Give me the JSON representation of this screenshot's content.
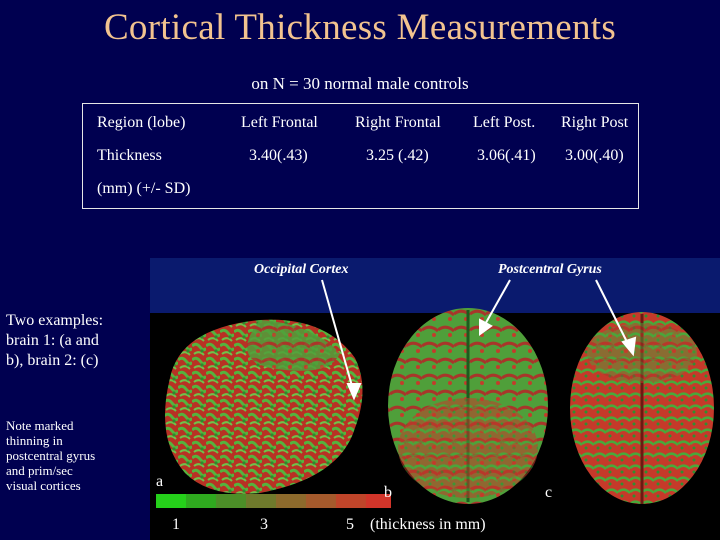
{
  "title": "Cortical Thickness Measurements",
  "subtitle": "on N = 30 normal male controls",
  "table": {
    "headers": [
      "Region (lobe)",
      "Left Frontal",
      "Right Frontal",
      "Left Post.",
      "Right Post"
    ],
    "row_label": "Thickness",
    "row_label_2": "(mm) (+/- SD)",
    "values": [
      "3.40(.43)",
      "3.25 (.42)",
      "3.06(.41)",
      "3.00(.40)"
    ]
  },
  "figure": {
    "label_occipital": "Occipital Cortex",
    "label_postcentral": "Postcentral Gyrus",
    "panel_a": "a",
    "panel_b": "b",
    "panel_c": "c",
    "scale_1": "1",
    "scale_3": "3",
    "scale_5": "5",
    "scale_unit": "(thickness in mm)"
  },
  "side_text": {
    "line1": "Two examples:",
    "line2": "brain 1: (a and",
    "line3": "b), brain 2: (c)"
  },
  "note": {
    "line1": "Note marked",
    "line2": "thinning in",
    "line3": "postcentral gyrus",
    "line4": "and prim/sec",
    "line5": "visual cortices"
  },
  "colors": {
    "title": "#f2c38f",
    "background": "#000050",
    "thick": "#d43a2a",
    "thin": "#3fae35"
  }
}
